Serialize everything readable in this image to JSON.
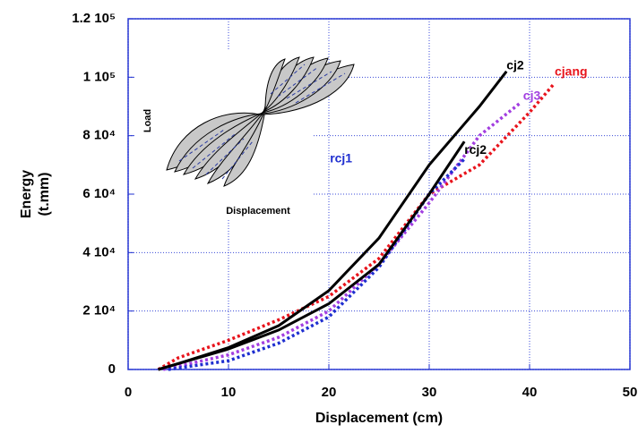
{
  "chart_data": {
    "type": "line",
    "x_label": "Displacement (cm)",
    "y_label": [
      "Energy",
      "(t.mm)"
    ],
    "xlim": [
      0,
      50
    ],
    "xticks": [
      0,
      10,
      20,
      30,
      40,
      50
    ],
    "ylim": [
      0,
      120000
    ],
    "yticks": [
      0,
      {
        "value": 20000,
        "label": "2 10⁴"
      },
      {
        "value": 40000,
        "label": "4 10⁴"
      },
      {
        "value": 60000,
        "label": "6 10⁴"
      },
      {
        "value": 80000,
        "label": "8 10⁴"
      },
      {
        "value": 100000,
        "label": "1 10⁵"
      },
      {
        "value": 120000,
        "label": "1.2 10⁵"
      }
    ],
    "grid": true,
    "inset": {
      "x_label": "Displacement",
      "y_label": "Load"
    },
    "series": [
      {
        "name": "cjang",
        "color": "#e8141c",
        "style": "dotted",
        "x": [
          3,
          5,
          10,
          15,
          20,
          25,
          30,
          35,
          40,
          42.5
        ],
        "values": [
          0,
          4000,
          10000,
          17000,
          25000,
          38000,
          60000,
          70000,
          88000,
          98000
        ]
      },
      {
        "name": "cj3",
        "color": "#a23ee0",
        "style": "dotted",
        "x": [
          3.5,
          10,
          15,
          20,
          25,
          30,
          35,
          39
        ],
        "values": [
          0,
          5000,
          11000,
          20000,
          36000,
          57000,
          80000,
          91000
        ]
      },
      {
        "name": "rcj1",
        "color": "#1f2fd0",
        "style": "dotted",
        "x": [
          4,
          10,
          15,
          20,
          25,
          30,
          33.5
        ],
        "values": [
          0,
          3000,
          9000,
          18000,
          35000,
          60000,
          72000
        ]
      },
      {
        "name": "rcj2",
        "color": "#000000",
        "style": "solid",
        "x": [
          3,
          5,
          10,
          15,
          20,
          25,
          30,
          33.5
        ],
        "values": [
          0,
          2000,
          7000,
          13500,
          22500,
          36000,
          60000,
          78000
        ]
      },
      {
        "name": "cj2",
        "color": "#000000",
        "style": "solid",
        "x": [
          3,
          5,
          10,
          15,
          20,
          25,
          30,
          35,
          37.7
        ],
        "values": [
          0,
          2000,
          7500,
          15000,
          27000,
          45000,
          70000,
          90000,
          102000
        ]
      }
    ]
  }
}
